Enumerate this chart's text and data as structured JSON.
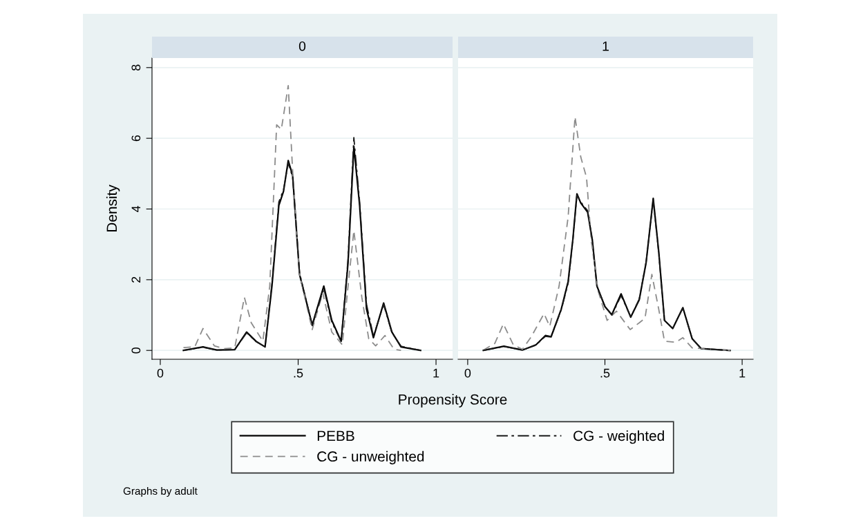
{
  "chart_data": [
    {
      "type": "line",
      "title": "0",
      "xlabel": "Propensity Score",
      "ylabel": "Density",
      "xlim": [
        -0.03,
        1.06
      ],
      "ylim": [
        -0.25,
        8.27
      ],
      "xticks": [
        0,
        {
          "value": 0.5,
          "label": ".5"
        },
        1
      ],
      "yticks": [
        0,
        2,
        4,
        6,
        8
      ],
      "grid": "y",
      "legend": "bottom",
      "annotations": [
        "Graphs by adult"
      ],
      "series": [
        {
          "name": "PEBB",
          "color": "#000000",
          "line_style": "solid",
          "x": [
            0.084,
            0.155,
            0.205,
            0.27,
            0.313,
            0.347,
            0.38,
            0.405,
            0.43,
            0.447,
            0.464,
            0.48,
            0.505,
            0.551,
            0.593,
            0.622,
            0.656,
            0.681,
            0.702,
            0.723,
            0.748,
            0.773,
            0.81,
            0.84,
            0.873,
            0.944
          ],
          "values": [
            0,
            0.1,
            0.01,
            0.02,
            0.52,
            0.26,
            0.1,
            1.82,
            4.1,
            4.5,
            5.37,
            4.95,
            2.15,
            0.72,
            1.82,
            0.85,
            0.26,
            2.48,
            5.77,
            4.1,
            1.17,
            0.36,
            1.34,
            0.52,
            0.1,
            0
          ]
        },
        {
          "name": "CG - unweighted",
          "color": "#8c8c8c",
          "line_style": "dashed",
          "x": [
            0.084,
            0.125,
            0.155,
            0.196,
            0.23,
            0.27,
            0.305,
            0.33,
            0.372,
            0.397,
            0.422,
            0.439,
            0.464,
            0.48,
            0.505,
            0.551,
            0.589,
            0.622,
            0.66,
            0.681,
            0.702,
            0.731,
            0.756,
            0.781,
            0.815,
            0.848,
            0.873
          ],
          "values": [
            0.08,
            0.1,
            0.62,
            0.13,
            0.05,
            0.07,
            1.5,
            0.78,
            0.26,
            1.82,
            6.38,
            6.25,
            7.49,
            5.08,
            2.15,
            0.59,
            1.63,
            0.52,
            0.16,
            1.82,
            3.39,
            1.5,
            0.33,
            0.13,
            0.42,
            0.03,
            0
          ]
        },
        {
          "name": "CG - weighted",
          "color": "#1a1a1a",
          "line_style": "dashdot",
          "x": [
            0.084,
            0.155,
            0.205,
            0.27,
            0.313,
            0.347,
            0.38,
            0.405,
            0.43,
            0.447,
            0.464,
            0.48,
            0.505,
            0.551,
            0.593,
            0.622,
            0.656,
            0.681,
            0.702,
            0.723,
            0.748,
            0.773,
            0.81,
            0.84,
            0.873,
            0.944
          ],
          "values": [
            0,
            0.09,
            0.01,
            0.02,
            0.5,
            0.25,
            0.1,
            1.9,
            4.2,
            4.55,
            5.3,
            4.9,
            2.2,
            0.7,
            1.75,
            0.8,
            0.25,
            2.6,
            6.02,
            4.2,
            1.3,
            0.4,
            1.3,
            0.5,
            0.12,
            0
          ]
        }
      ]
    },
    {
      "type": "line",
      "title": "1",
      "xlim": [
        -0.035,
        1.04
      ],
      "ylim": [
        -0.25,
        8.27
      ],
      "xticks": [
        0,
        {
          "value": 0.5,
          "label": ".5"
        },
        1
      ],
      "yticks": [
        0,
        2,
        4,
        6,
        8
      ],
      "grid": "y",
      "tick_labels": "x",
      "series": [
        {
          "color": "#000000",
          "line_style": "solid",
          "x": [
            0.057,
            0.132,
            0.199,
            0.249,
            0.283,
            0.304,
            0.341,
            0.366,
            0.383,
            0.398,
            0.412,
            0.437,
            0.454,
            0.471,
            0.5,
            0.525,
            0.559,
            0.594,
            0.625,
            0.65,
            0.676,
            0.696,
            0.717,
            0.747,
            0.784,
            0.818,
            0.851,
            0.956
          ],
          "values": [
            0,
            0.12,
            0.01,
            0.16,
            0.42,
            0.39,
            1.17,
            1.95,
            3.13,
            4.43,
            4.17,
            3.91,
            3.13,
            1.82,
            1.24,
            1.01,
            1.6,
            0.94,
            1.43,
            2.48,
            4.3,
            2.8,
            0.85,
            0.62,
            1.21,
            0.33,
            0.05,
            0
          ]
        },
        {
          "color": "#8c8c8c",
          "line_style": "dashed",
          "x": [
            0.057,
            0.099,
            0.13,
            0.166,
            0.199,
            0.232,
            0.278,
            0.299,
            0.333,
            0.366,
            0.391,
            0.412,
            0.433,
            0.45,
            0.475,
            0.508,
            0.542,
            0.592,
            0.625,
            0.646,
            0.671,
            0.696,
            0.717,
            0.759,
            0.784,
            0.818,
            0.956
          ],
          "values": [
            0.01,
            0.2,
            0.75,
            0.16,
            0.03,
            0.39,
            1.04,
            0.68,
            1.82,
            3.78,
            6.61,
            5.47,
            4.89,
            3.13,
            1.69,
            0.85,
            1.11,
            0.59,
            0.78,
            0.91,
            2.15,
            1.17,
            0.26,
            0.23,
            0.36,
            0.07,
            0
          ]
        },
        {
          "color": "#1a1a1a",
          "line_style": "dashdot",
          "x": [
            0.057,
            0.132,
            0.199,
            0.249,
            0.283,
            0.304,
            0.341,
            0.366,
            0.383,
            0.398,
            0.412,
            0.437,
            0.454,
            0.471,
            0.5,
            0.525,
            0.559,
            0.594,
            0.625,
            0.65,
            0.676,
            0.696,
            0.717,
            0.747,
            0.784,
            0.818,
            0.851,
            0.956
          ],
          "values": [
            0,
            0.11,
            0.01,
            0.15,
            0.4,
            0.38,
            1.15,
            1.9,
            3.1,
            4.4,
            4.2,
            3.95,
            3.1,
            1.8,
            1.25,
            1.0,
            1.55,
            0.95,
            1.45,
            2.5,
            4.25,
            2.75,
            0.85,
            0.62,
            1.2,
            0.33,
            0.05,
            0
          ]
        }
      ]
    }
  ]
}
